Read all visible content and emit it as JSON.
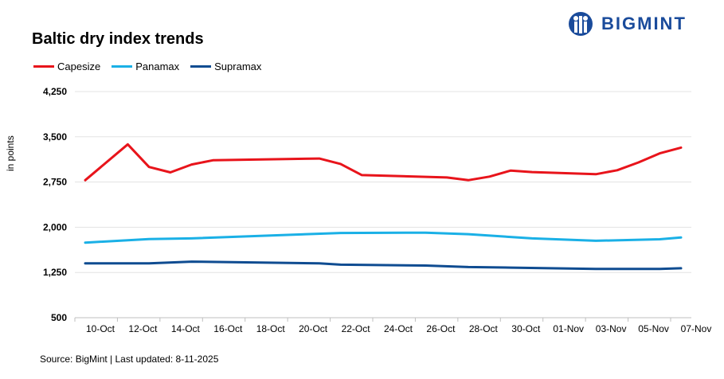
{
  "brand": {
    "name": "BIGMINT",
    "color": "#1a4b9b"
  },
  "chart_data": {
    "type": "line",
    "title": "Baltic dry index trends",
    "ylabel": "in points",
    "xlabel": "",
    "ylim": [
      500,
      4250
    ],
    "yticks": [
      500,
      1250,
      2000,
      2750,
      3500,
      4250
    ],
    "ytick_labels": [
      "500",
      "1,250",
      "2,000",
      "2,750",
      "3,500",
      "4,250"
    ],
    "x": [
      "10-Oct",
      "11-Oct",
      "12-Oct",
      "13-Oct",
      "14-Oct",
      "15-Oct",
      "16-Oct",
      "17-Oct",
      "18-Oct",
      "19-Oct",
      "20-Oct",
      "21-Oct",
      "22-Oct",
      "23-Oct",
      "24-Oct",
      "25-Oct",
      "26-Oct",
      "27-Oct",
      "28-Oct",
      "29-Oct",
      "30-Oct",
      "31-Oct",
      "01-Nov",
      "02-Nov",
      "03-Nov",
      "04-Nov",
      "05-Nov",
      "06-Nov",
      "07-Nov"
    ],
    "xtick_labels": [
      "10-Oct",
      "12-Oct",
      "14-Oct",
      "16-Oct",
      "18-Oct",
      "20-Oct",
      "22-Oct",
      "24-Oct",
      "26-Oct",
      "28-Oct",
      "30-Oct",
      "01-Nov",
      "03-Nov",
      "05-Nov",
      "07-Nov"
    ],
    "grid": true,
    "legend_position": "top-left",
    "series": [
      {
        "name": "Capesize",
        "color": "#e8141b",
        "points": [
          [
            "10-Oct",
            2780
          ],
          [
            "12-Oct",
            3375
          ],
          [
            "13-Oct",
            3000
          ],
          [
            "14-Oct",
            2910
          ],
          [
            "15-Oct",
            3040
          ],
          [
            "16-Oct",
            3110
          ],
          [
            "21-Oct",
            3140
          ],
          [
            "22-Oct",
            3050
          ],
          [
            "23-Oct",
            2865
          ],
          [
            "27-Oct",
            2825
          ],
          [
            "28-Oct",
            2780
          ],
          [
            "29-Oct",
            2840
          ],
          [
            "30-Oct",
            2940
          ],
          [
            "31-Oct",
            2915
          ],
          [
            "03-Nov",
            2880
          ],
          [
            "04-Nov",
            2945
          ],
          [
            "05-Nov",
            3075
          ],
          [
            "06-Nov",
            3225
          ],
          [
            "07-Nov",
            3320
          ]
        ]
      },
      {
        "name": "Panamax",
        "color": "#1ab0e6",
        "points": [
          [
            "10-Oct",
            1745
          ],
          [
            "13-Oct",
            1805
          ],
          [
            "15-Oct",
            1815
          ],
          [
            "22-Oct",
            1905
          ],
          [
            "26-Oct",
            1910
          ],
          [
            "28-Oct",
            1885
          ],
          [
            "31-Oct",
            1815
          ],
          [
            "03-Nov",
            1775
          ],
          [
            "06-Nov",
            1800
          ],
          [
            "07-Nov",
            1830
          ]
        ]
      },
      {
        "name": "Supramax",
        "color": "#0f4c91",
        "points": [
          [
            "10-Oct",
            1400
          ],
          [
            "13-Oct",
            1400
          ],
          [
            "15-Oct",
            1430
          ],
          [
            "21-Oct",
            1400
          ],
          [
            "22-Oct",
            1380
          ],
          [
            "26-Oct",
            1365
          ],
          [
            "28-Oct",
            1340
          ],
          [
            "30-Oct",
            1330
          ],
          [
            "03-Nov",
            1310
          ],
          [
            "06-Nov",
            1310
          ],
          [
            "07-Nov",
            1320
          ]
        ]
      }
    ]
  },
  "source_text": "Source:  BigMint | Last updated:  8-11-2025"
}
